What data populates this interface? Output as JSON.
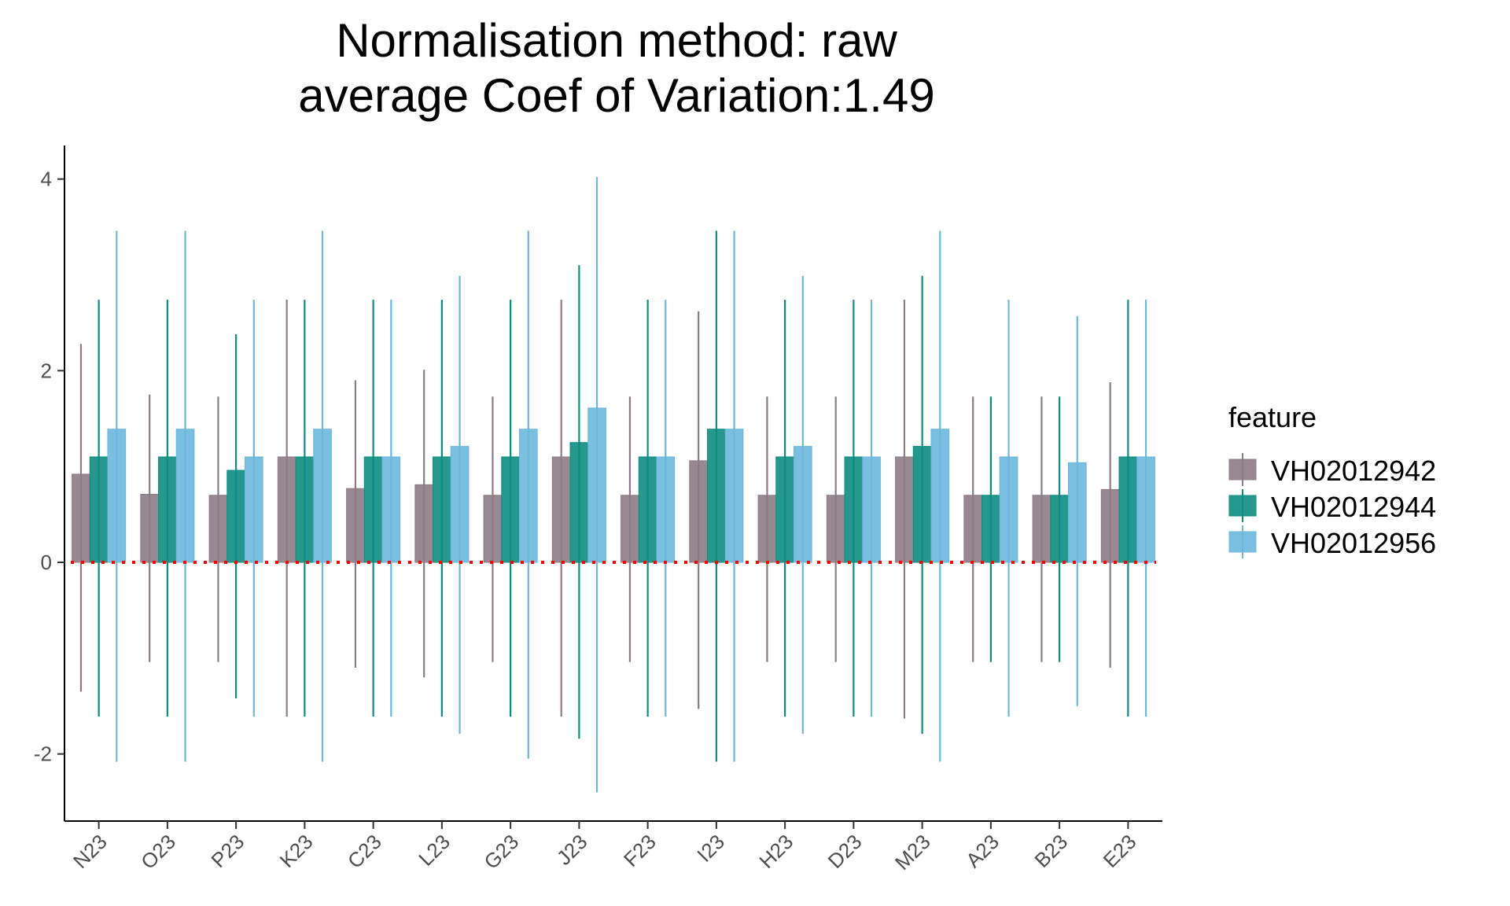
{
  "chart_data": {
    "type": "bar",
    "title": "Normalisation method: raw",
    "subtitle": "average Coef of Variation:1.49",
    "xlabel": "",
    "ylabel": "",
    "ylim": [
      -2.7,
      4.35
    ],
    "yticks": [
      -2,
      0,
      2,
      4
    ],
    "grid": false,
    "legend_position": "right",
    "legend_title": "feature",
    "reference_line": {
      "y": 0,
      "style": "dotted",
      "color": "#ff0000"
    },
    "categories": [
      "N23",
      "O23",
      "P23",
      "K23",
      "C23",
      "L23",
      "G23",
      "J23",
      "F23",
      "I23",
      "H23",
      "D23",
      "M23",
      "A23",
      "B23",
      "E23"
    ],
    "series": [
      {
        "name": "VH02012942",
        "color": "#8c7b86",
        "values": [
          0.92,
          0.71,
          0.7,
          1.1,
          0.77,
          0.81,
          0.7,
          1.1,
          0.7,
          1.06,
          0.7,
          0.7,
          1.1,
          0.7,
          0.7,
          0.76
        ],
        "error_high": [
          2.28,
          1.75,
          1.73,
          2.74,
          1.9,
          2.01,
          1.73,
          2.74,
          1.73,
          2.62,
          1.73,
          1.73,
          2.74,
          1.73,
          1.73,
          1.88
        ],
        "error_low": [
          -1.35,
          -1.04,
          -1.04,
          -1.61,
          -1.1,
          -1.2,
          -1.04,
          -1.61,
          -1.04,
          -1.53,
          -1.04,
          -1.04,
          -1.63,
          -1.04,
          -1.04,
          -1.1
        ]
      },
      {
        "name": "VH02012944",
        "color": "#0e8c80",
        "values": [
          1.1,
          1.1,
          0.96,
          1.1,
          1.1,
          1.1,
          1.1,
          1.25,
          1.1,
          1.39,
          1.1,
          1.1,
          1.21,
          0.7,
          0.7,
          1.1
        ],
        "error_high": [
          2.74,
          2.74,
          2.38,
          2.74,
          2.74,
          2.74,
          2.74,
          3.1,
          2.74,
          3.46,
          2.74,
          2.74,
          2.99,
          1.73,
          1.73,
          2.74
        ],
        "error_low": [
          -1.61,
          -1.61,
          -1.42,
          -1.61,
          -1.61,
          -1.61,
          -1.61,
          -1.84,
          -1.61,
          -2.08,
          -1.61,
          -1.61,
          -1.79,
          -1.04,
          -1.04,
          -1.61
        ]
      },
      {
        "name": "VH02012956",
        "color": "#6cb8dc",
        "values": [
          1.39,
          1.39,
          1.1,
          1.39,
          1.1,
          1.21,
          1.39,
          1.61,
          1.1,
          1.39,
          1.21,
          1.1,
          1.39,
          1.1,
          1.04,
          1.1
        ],
        "error_high": [
          3.46,
          3.46,
          2.74,
          3.46,
          2.74,
          2.99,
          3.46,
          4.02,
          2.74,
          3.46,
          2.99,
          2.74,
          3.46,
          2.74,
          2.57,
          2.74
        ],
        "error_low": [
          -2.08,
          -2.08,
          -1.61,
          -2.08,
          -1.61,
          -1.79,
          -2.05,
          -2.4,
          -1.61,
          -2.08,
          -1.79,
          -1.61,
          -2.08,
          -1.61,
          -1.5,
          -1.61
        ]
      }
    ]
  }
}
